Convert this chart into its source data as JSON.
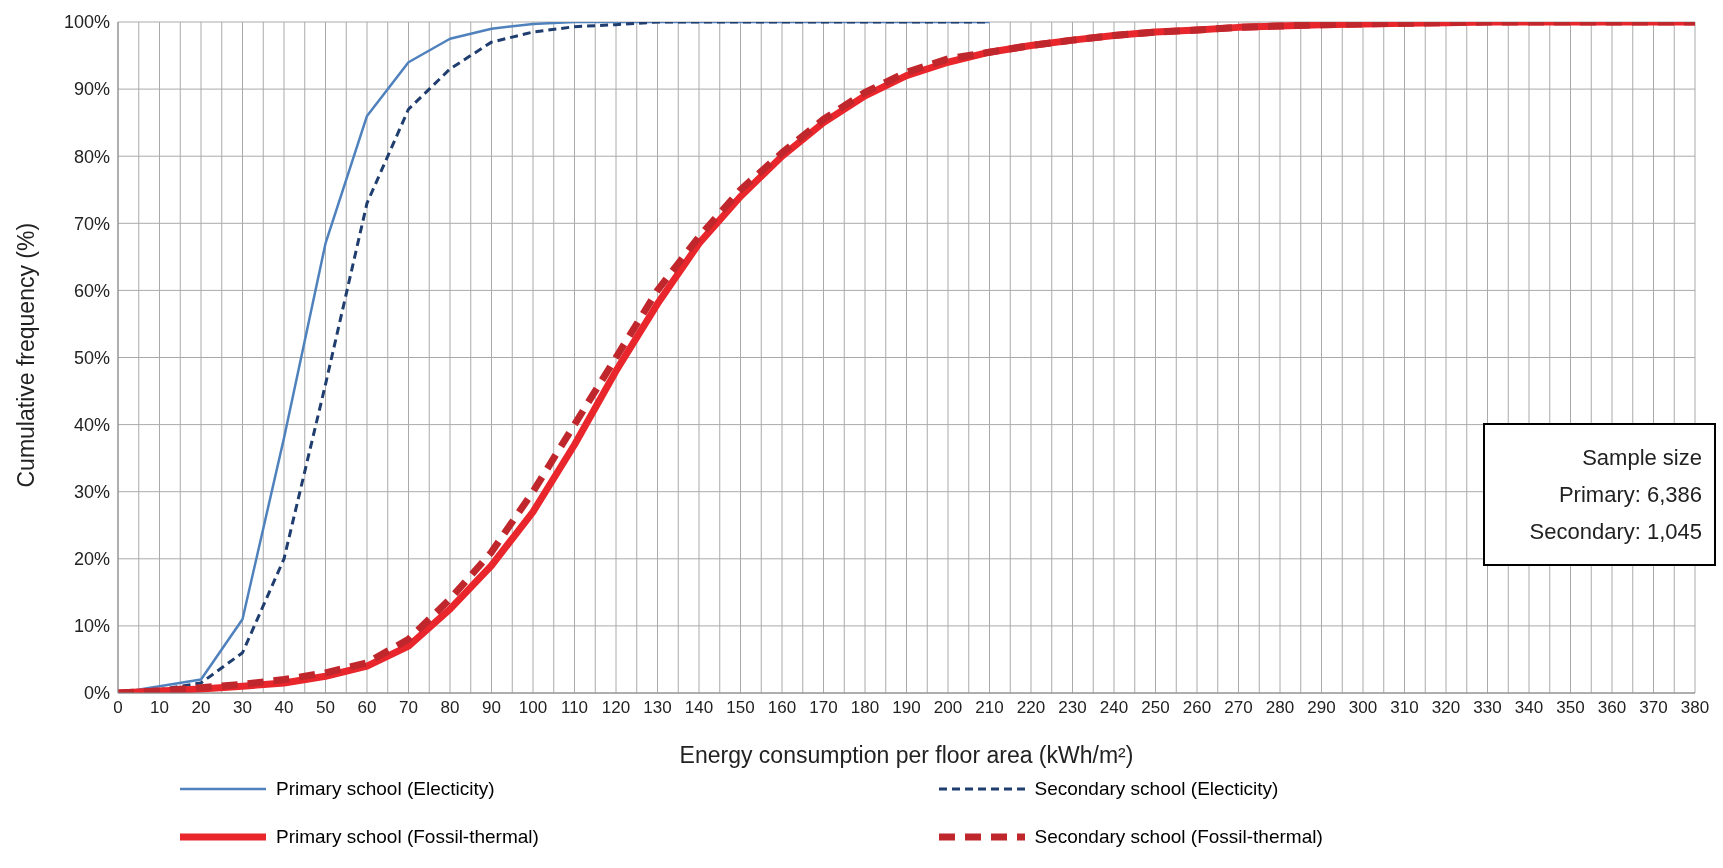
{
  "chart_data": {
    "type": "line",
    "xlabel": "Energy consumption per floor area (kWh/m²)",
    "ylabel": "Cumulative frequency (%)",
    "annotations": [
      "Sample size",
      "Primary: 6,386",
      "Secondary: 1,045"
    ],
    "xlim": [
      0,
      380
    ],
    "xticks": [
      0,
      {
        "value": 5,
        "label": null
      },
      10,
      {
        "value": 15,
        "label": null
      },
      20,
      {
        "value": 25,
        "label": null
      },
      30,
      {
        "value": 35,
        "label": null
      },
      40,
      {
        "value": 45,
        "label": null
      },
      50,
      {
        "value": 55,
        "label": null
      },
      60,
      {
        "value": 65,
        "label": null
      },
      70,
      {
        "value": 75,
        "label": null
      },
      80,
      {
        "value": 85,
        "label": null
      },
      90,
      {
        "value": 95,
        "label": null
      },
      100,
      {
        "value": 105,
        "label": null
      },
      110,
      {
        "value": 115,
        "label": null
      },
      120,
      {
        "value": 125,
        "label": null
      },
      130,
      {
        "value": 135,
        "label": null
      },
      140,
      {
        "value": 145,
        "label": null
      },
      150,
      {
        "value": 155,
        "label": null
      },
      160,
      {
        "value": 165,
        "label": null
      },
      170,
      {
        "value": 175,
        "label": null
      },
      180,
      {
        "value": 185,
        "label": null
      },
      190,
      {
        "value": 195,
        "label": null
      },
      200,
      {
        "value": 205,
        "label": null
      },
      210,
      {
        "value": 215,
        "label": null
      },
      220,
      {
        "value": 225,
        "label": null
      },
      230,
      {
        "value": 235,
        "label": null
      },
      240,
      {
        "value": 245,
        "label": null
      },
      250,
      {
        "value": 255,
        "label": null
      },
      260,
      {
        "value": 265,
        "label": null
      },
      270,
      {
        "value": 275,
        "label": null
      },
      280,
      {
        "value": 285,
        "label": null
      },
      290,
      {
        "value": 295,
        "label": null
      },
      300,
      {
        "value": 305,
        "label": null
      },
      310,
      {
        "value": 315,
        "label": null
      },
      320,
      {
        "value": 325,
        "label": null
      },
      330,
      {
        "value": 335,
        "label": null
      },
      340,
      {
        "value": 345,
        "label": null
      },
      350,
      {
        "value": 355,
        "label": null
      },
      360,
      {
        "value": 365,
        "label": null
      },
      370,
      {
        "value": 375,
        "label": null
      },
      380
    ],
    "ylim": [
      0,
      100
    ],
    "yticks": [
      {
        "value": 0,
        "label": "0%"
      },
      {
        "value": 10,
        "label": "10%"
      },
      {
        "value": 20,
        "label": "20%"
      },
      {
        "value": 30,
        "label": "30%"
      },
      {
        "value": 40,
        "label": "40%"
      },
      {
        "value": 50,
        "label": "50%"
      },
      {
        "value": 60,
        "label": "60%"
      },
      {
        "value": 70,
        "label": "70%"
      },
      {
        "value": 80,
        "label": "80%"
      },
      {
        "value": 90,
        "label": "90%"
      },
      {
        "value": 100,
        "label": "100%"
      }
    ],
    "grid": true,
    "legend": "bottom",
    "marker": "none",
    "series": [
      {
        "name": "Primary school (Electicity)",
        "color": "#4f81bd",
        "line_style": "solid",
        "x": [
          0,
          20,
          30,
          40,
          50,
          60,
          70,
          80,
          90,
          100,
          110,
          120,
          130,
          140,
          150,
          160,
          170,
          180,
          190,
          200,
          210
        ],
        "values": [
          0,
          2,
          11,
          38,
          67,
          86,
          94,
          97.5,
          99,
          99.7,
          100,
          100,
          100,
          100,
          100,
          100,
          100,
          100,
          100,
          100,
          100
        ]
      },
      {
        "name": "Secondary school (Electicity)",
        "color": "#1f3d6e",
        "line_style": "dashed",
        "x": [
          0,
          10,
          20,
          30,
          40,
          50,
          60,
          70,
          80,
          90,
          100,
          110,
          120,
          130,
          140,
          150,
          160,
          170,
          180,
          190,
          200,
          210
        ],
        "values": [
          0,
          0.5,
          1.5,
          6,
          20,
          46,
          73,
          87,
          93,
          97,
          98.5,
          99.3,
          99.6,
          100,
          100,
          100,
          100,
          100,
          100,
          100,
          100,
          100
        ]
      },
      {
        "name": "Primary school (Fossil-thermal)",
        "color": "#e8262b",
        "line_style": "solid",
        "x": [
          0,
          10,
          20,
          30,
          40,
          50,
          60,
          70,
          80,
          90,
          100,
          110,
          120,
          130,
          140,
          150,
          160,
          170,
          180,
          190,
          200,
          210,
          220,
          230,
          240,
          250,
          260,
          270,
          280,
          290,
          300,
          310,
          320,
          330,
          340,
          350,
          360,
          370,
          380
        ],
        "values": [
          0,
          0.3,
          0.6,
          1,
          1.5,
          2.5,
          4,
          7,
          12.5,
          19,
          27,
          37,
          48,
          58,
          67,
          74,
          80,
          85,
          89,
          92,
          94,
          95.5,
          96.5,
          97.3,
          98,
          98.5,
          98.8,
          99.2,
          99.4,
          99.6,
          99.7,
          99.8,
          99.9,
          100,
          100,
          100,
          100,
          100,
          100
        ]
      },
      {
        "name": "Secondary school (Fossil-thermal)",
        "color": "#c0272d",
        "line_style": "dashed",
        "x": [
          0,
          10,
          20,
          30,
          40,
          50,
          60,
          70,
          80,
          90,
          100,
          110,
          120,
          130,
          140,
          150,
          160,
          170,
          180,
          190,
          200,
          210,
          220,
          230,
          240,
          250,
          260,
          270,
          280,
          290,
          300,
          310,
          320,
          330,
          340,
          350,
          360,
          370,
          380
        ],
        "values": [
          0,
          0.3,
          0.8,
          1.3,
          2,
          3,
          4.5,
          8,
          14,
          21,
          30,
          40,
          50,
          60,
          68,
          75,
          80.5,
          85.5,
          89.5,
          92.5,
          94.5,
          95.5,
          96.5,
          97.3,
          98,
          98.5,
          98.8,
          99.2,
          99.4,
          99.6,
          99.7,
          99.8,
          99.9,
          100,
          100,
          100,
          100,
          100,
          100
        ]
      }
    ]
  }
}
